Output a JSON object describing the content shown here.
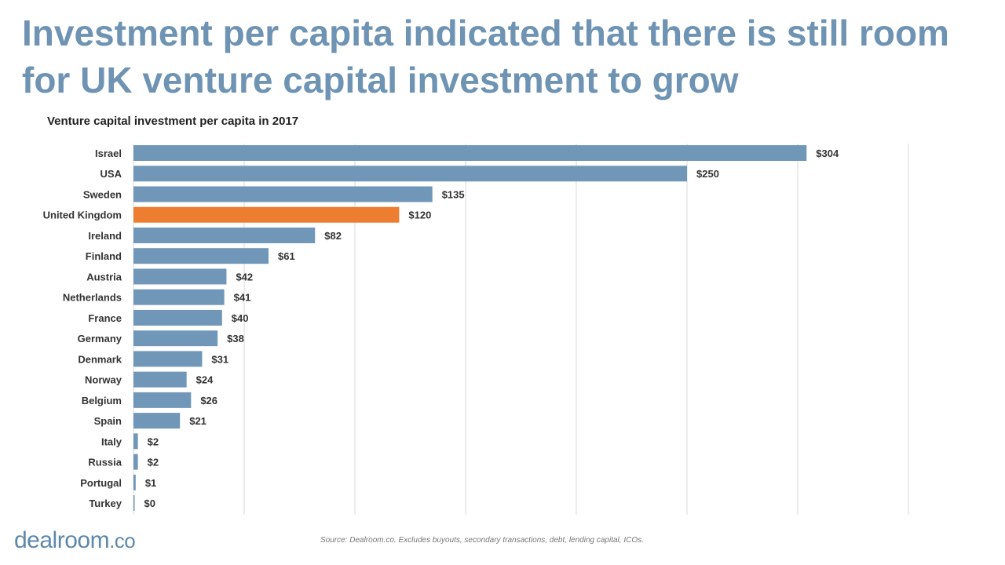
{
  "title": "Investment per capita indicated that there is still room for UK venture capital investment to grow",
  "source": "Source: Dealroom.co.  Excludes buyouts, secondary transactions, debt, lending capital, ICOs.",
  "logo": {
    "main": "dealroom",
    "suffix": ".co"
  },
  "colors": {
    "bar": "#7097b8",
    "highlight": "#ed7d31",
    "title": "#6f93b3"
  },
  "chart_data": {
    "type": "bar",
    "orientation": "horizontal",
    "title": "Venture capital investment per capita in 2017",
    "categories": [
      "Israel",
      "USA",
      "Sweden",
      "United Kingdom",
      "Ireland",
      "Finland",
      "Austria",
      "Netherlands",
      "France",
      "Germany",
      "Denmark",
      "Norway",
      "Belgium",
      "Spain",
      "Italy",
      "Russia",
      "Portugal",
      "Turkey"
    ],
    "values": [
      304,
      250,
      135,
      120,
      82,
      61,
      42,
      41,
      40,
      38,
      31,
      24,
      26,
      21,
      2,
      2,
      1,
      0
    ],
    "data_labels": [
      "$304",
      "$250",
      "$135",
      "$120",
      "$82",
      "$61",
      "$42",
      "$41",
      "$40",
      "$38",
      "$31",
      "$24",
      "$26",
      "$21",
      "$2",
      "$2",
      "$1",
      "$0"
    ],
    "highlight": "United Kingdom",
    "xlim": [
      0,
      350
    ],
    "grid": true
  }
}
